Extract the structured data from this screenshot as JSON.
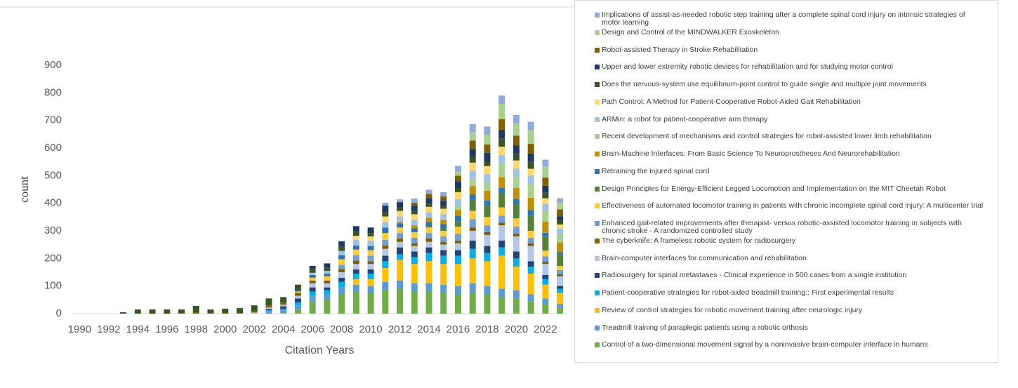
{
  "chart_data": {
    "type": "bar",
    "stacked": true,
    "xlabel": "Citation Years",
    "ylabel": "count",
    "categories": [
      "1990",
      null,
      "1992",
      null,
      "1994",
      null,
      "1996",
      null,
      "1998",
      null,
      "2000",
      null,
      "2002",
      null,
      "2004",
      null,
      "2006",
      null,
      "2008",
      null,
      "2010",
      null,
      "2012",
      null,
      "2014",
      null,
      "2016",
      null,
      "2018",
      null,
      "2020",
      null,
      "2022",
      null
    ],
    "ylim": [
      0,
      900
    ],
    "yticks": [
      0,
      100,
      200,
      300,
      400,
      500,
      600,
      700,
      800,
      900
    ],
    "grid": false,
    "series": [
      {
        "name": "Control of a two-dimensional movement signal by a noninvasive brain-computer interface in humans",
        "color": "#70ad47",
        "values": [
          0,
          0,
          0,
          0,
          0,
          0,
          0,
          0,
          0,
          0,
          0,
          0,
          0,
          0,
          2,
          15,
          45,
          50,
          70,
          80,
          75,
          85,
          90,
          80,
          80,
          75,
          70,
          75,
          70,
          60,
          55,
          45,
          35,
          20
        ]
      },
      {
        "name": "Treadmill training of paraplegic patients using a robotic orthosis",
        "color": "#5b9bd5",
        "values": [
          0,
          0,
          0,
          0,
          0,
          0,
          0,
          0,
          0,
          0,
          0,
          0,
          0,
          8,
          10,
          15,
          20,
          20,
          25,
          25,
          25,
          30,
          30,
          30,
          30,
          30,
          30,
          35,
          30,
          30,
          30,
          25,
          20,
          15
        ]
      },
      {
        "name": "Review of control strategies for robotic movement training after neurologic injury",
        "color": "#ffc000",
        "values": [
          0,
          0,
          0,
          0,
          0,
          0,
          0,
          0,
          0,
          0,
          0,
          0,
          0,
          0,
          0,
          0,
          0,
          0,
          0,
          20,
          25,
          50,
          75,
          70,
          80,
          75,
          80,
          90,
          90,
          120,
          85,
          75,
          50,
          40
        ]
      },
      {
        "name": "Patient-cooperative strategies for robot-aided treadmill training:: First experimental results",
        "color": "#00b0f0",
        "values": [
          0,
          0,
          0,
          0,
          0,
          0,
          0,
          0,
          0,
          0,
          0,
          0,
          0,
          4,
          5,
          10,
          15,
          15,
          20,
          20,
          20,
          25,
          20,
          25,
          30,
          30,
          30,
          35,
          30,
          30,
          30,
          25,
          20,
          15
        ]
      },
      {
        "name": "Radiosurgery for spinal metastases - Clinical experience in 500 cases from a single institution",
        "color": "#264478",
        "values": [
          0,
          0,
          0,
          0,
          0,
          0,
          0,
          0,
          0,
          0,
          0,
          0,
          0,
          5,
          10,
          15,
          15,
          10,
          15,
          15,
          15,
          20,
          25,
          20,
          20,
          20,
          20,
          30,
          25,
          25,
          25,
          20,
          15,
          10
        ]
      },
      {
        "name": "Brain-computer interfaces for communication and rehabilitation",
        "color": "#b4c7e7",
        "values": [
          0,
          0,
          0,
          0,
          0,
          0,
          0,
          0,
          0,
          0,
          0,
          0,
          4,
          5,
          5,
          10,
          15,
          15,
          20,
          20,
          20,
          25,
          20,
          20,
          20,
          20,
          25,
          35,
          40,
          55,
          55,
          55,
          40,
          35
        ]
      },
      {
        "name": "The cyberknife: A frameless robotic system for radiosurgery",
        "color": "#7f6000",
        "values": [
          0,
          0,
          0,
          0,
          0,
          0,
          0,
          1,
          3,
          1,
          2,
          2,
          4,
          8,
          8,
          10,
          10,
          10,
          12,
          12,
          10,
          12,
          12,
          10,
          12,
          10,
          10,
          12,
          10,
          10,
          10,
          10,
          8,
          8
        ]
      },
      {
        "name": "Enhanced gait-related improvements after therapist- versus robotic-assisted locomotor training in subjects with chronic stroke - A randomized controlled study",
        "color": "#6f9fd8",
        "values": [
          0,
          0,
          0,
          0,
          0,
          0,
          0,
          0,
          0,
          0,
          0,
          0,
          0,
          0,
          0,
          0,
          0,
          0,
          15,
          20,
          20,
          20,
          20,
          20,
          20,
          20,
          25,
          30,
          25,
          25,
          25,
          20,
          20,
          15
        ]
      },
      {
        "name": "Effectiveness of automated locomotor training in patients with chronic incomplete spinal cord injury: A multicenter trial",
        "color": "#ffcd33",
        "values": [
          0,
          0,
          0,
          0,
          0,
          0,
          0,
          0,
          0,
          0,
          0,
          0,
          0,
          0,
          0,
          5,
          10,
          15,
          20,
          20,
          20,
          25,
          20,
          20,
          20,
          20,
          25,
          30,
          30,
          30,
          30,
          25,
          20,
          15
        ]
      },
      {
        "name": "Design Principles for Energy-Efficient Legged Locomotion and Implementation on the MIT Cheetah Robot",
        "color": "#548235",
        "values": [
          0,
          0,
          0,
          0,
          0,
          0,
          0,
          0,
          0,
          0,
          0,
          0,
          0,
          0,
          0,
          0,
          0,
          0,
          0,
          0,
          0,
          0,
          0,
          0,
          5,
          10,
          20,
          40,
          40,
          50,
          50,
          55,
          50,
          40
        ]
      },
      {
        "name": "Retraining the injured spinal cord",
        "color": "#2e75b6",
        "values": [
          0,
          0,
          0,
          0,
          0,
          0,
          0,
          0,
          0,
          0,
          0,
          0,
          0,
          0,
          0,
          5,
          10,
          10,
          15,
          15,
          15,
          20,
          15,
          15,
          15,
          15,
          20,
          20,
          20,
          20,
          20,
          20,
          15,
          10
        ]
      },
      {
        "name": "Brain-Machine Interfaces: From Basic Science To Neuroprostheses And Neurorehabilitation",
        "color": "#bf9000",
        "values": [
          0,
          0,
          0,
          0,
          0,
          0,
          0,
          0,
          0,
          0,
          0,
          0,
          0,
          0,
          0,
          0,
          0,
          0,
          0,
          0,
          0,
          0,
          5,
          10,
          15,
          15,
          20,
          30,
          35,
          40,
          40,
          45,
          40,
          35
        ]
      },
      {
        "name": "Recent development of mechanisms and control strategies for robot-assisted lower limb rehabilitation",
        "color": "#a9d18e",
        "values": [
          0,
          0,
          0,
          0,
          0,
          0,
          0,
          0,
          0,
          0,
          0,
          0,
          0,
          0,
          0,
          0,
          0,
          0,
          0,
          0,
          0,
          0,
          0,
          0,
          0,
          0,
          15,
          25,
          30,
          50,
          40,
          50,
          40,
          30
        ]
      },
      {
        "name": "ARMin: a robot for patient-cooperative arm therapy",
        "color": "#9dc3e6",
        "values": [
          0,
          0,
          0,
          0,
          0,
          0,
          0,
          0,
          0,
          0,
          0,
          0,
          0,
          0,
          0,
          0,
          8,
          10,
          15,
          20,
          20,
          20,
          20,
          20,
          20,
          20,
          25,
          30,
          30,
          30,
          30,
          30,
          25,
          20
        ]
      },
      {
        "name": "Path Control: A Method for Patient-Cooperative Robot-Aided Gait Rehabilitation",
        "color": "#ffd966",
        "values": [
          0,
          0,
          0,
          0,
          0,
          0,
          0,
          0,
          0,
          0,
          0,
          0,
          0,
          0,
          0,
          0,
          0,
          0,
          0,
          15,
          15,
          20,
          20,
          20,
          20,
          20,
          25,
          30,
          30,
          30,
          30,
          25,
          20,
          15
        ]
      },
      {
        "name": "Does the nervous-system use equilibrium-point control to guide single and multiple joint movements",
        "color": "#375623",
        "values": [
          0,
          0,
          0,
          5,
          15,
          15,
          15,
          14,
          25,
          14,
          16,
          18,
          22,
          25,
          20,
          20,
          15,
          12,
          15,
          15,
          12,
          15,
          12,
          12,
          12,
          10,
          15,
          20,
          18,
          30,
          25,
          25,
          20,
          15
        ]
      },
      {
        "name": "Upper and lower extremity robotic devices for rehabilitation and for studying motor control",
        "color": "#203864",
        "values": [
          0,
          0,
          0,
          0,
          0,
          0,
          0,
          0,
          0,
          0,
          0,
          0,
          0,
          0,
          0,
          0,
          10,
          15,
          20,
          20,
          20,
          25,
          20,
          20,
          20,
          20,
          25,
          30,
          30,
          30,
          30,
          30,
          25,
          15
        ]
      },
      {
        "name": "Robot-assisted Therapy in Stroke Rehabilitation",
        "color": "#806000",
        "values": [
          0,
          0,
          0,
          0,
          0,
          0,
          0,
          0,
          0,
          0,
          0,
          0,
          0,
          0,
          0,
          0,
          0,
          0,
          0,
          0,
          0,
          0,
          0,
          10,
          15,
          15,
          20,
          30,
          30,
          40,
          35,
          35,
          30,
          25
        ]
      },
      {
        "name": "Design and Control of the MINDWALKER Exoskeleton",
        "color": "#a9d18e",
        "values": [
          0,
          0,
          0,
          0,
          0,
          0,
          0,
          0,
          0,
          0,
          0,
          0,
          0,
          0,
          0,
          0,
          0,
          0,
          0,
          0,
          0,
          0,
          0,
          0,
          0,
          0,
          15,
          30,
          35,
          55,
          45,
          50,
          40,
          25
        ]
      },
      {
        "name": "Implications of assist-as-needed robotic step training after a complete spinal cord injury on intrinsic strategies of motor learning",
        "color": "#8faadc",
        "values": [
          0,
          0,
          0,
          0,
          0,
          0,
          0,
          0,
          0,
          0,
          0,
          0,
          0,
          0,
          0,
          0,
          0,
          0,
          0,
          0,
          0,
          10,
          10,
          15,
          15,
          15,
          20,
          30,
          30,
          30,
          30,
          30,
          25,
          15
        ]
      }
    ]
  }
}
